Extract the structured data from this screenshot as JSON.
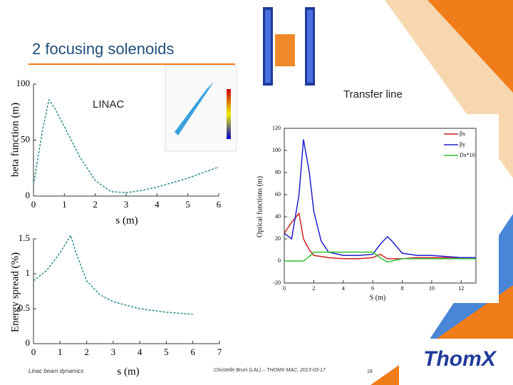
{
  "slide": {
    "title": "2 focusing solenoids",
    "linac_label": "LINAC",
    "transfer_label": "Transfer line",
    "footer_left": "Linac beam dynamics",
    "footer_center": "Christelle Bruni (LAL) – THOMX MAC, 2013-03-17",
    "page": "18",
    "logo": "ThomX"
  },
  "chart_data": [
    {
      "type": "line",
      "xlabel": "s (m)",
      "ylabel": "beta function (m)",
      "xlim": [
        0,
        6
      ],
      "xticks": [
        0,
        1,
        2,
        3,
        4,
        5,
        6
      ],
      "ylim": [
        0,
        100
      ],
      "yticks": [
        0,
        50,
        100
      ],
      "x": [
        0,
        0.3,
        0.5,
        0.7,
        1,
        1.5,
        2,
        2.5,
        3,
        3.5,
        4,
        4.5,
        5,
        5.5,
        6
      ],
      "series": [
        {
          "color": "#2e8b8b",
          "values": [
            10,
            60,
            86,
            78,
            62,
            35,
            14,
            4,
            3,
            5,
            8,
            12,
            16,
            21,
            26
          ]
        }
      ]
    },
    {
      "type": "line",
      "xlabel": "s (m)",
      "ylabel": "Energy spread (%)",
      "xlim": [
        0,
        7
      ],
      "xticks": [
        0,
        1,
        2,
        3,
        4,
        5,
        6,
        7
      ],
      "ylim": [
        0,
        1.5
      ],
      "yticks": [
        0,
        0.5,
        1,
        1.5
      ],
      "x": [
        0,
        0.5,
        1,
        1.4,
        1.6,
        2,
        2.5,
        3,
        4,
        5,
        6
      ],
      "series": [
        {
          "color": "#2e8b8b",
          "values": [
            0.9,
            1.05,
            1.3,
            1.55,
            1.3,
            0.9,
            0.7,
            0.6,
            0.5,
            0.45,
            0.42
          ]
        }
      ]
    },
    {
      "type": "line",
      "xlabel": "S (m)",
      "ylabel": "Optical functions (m)",
      "xlim": [
        0,
        13
      ],
      "xticks": [
        0,
        2,
        4,
        6,
        8,
        10,
        12
      ],
      "ylim": [
        -20,
        120
      ],
      "yticks": [
        -20,
        0,
        20,
        40,
        60,
        80,
        100,
        120
      ],
      "legend": "upper right",
      "x": [
        0,
        0.5,
        1,
        1.3,
        1.7,
        2,
        2.5,
        3,
        4,
        5,
        6,
        6.5,
        7,
        7.3,
        8,
        9,
        10,
        12,
        13
      ],
      "series": [
        {
          "name": "βx",
          "color": "#cc2020",
          "values": [
            25,
            35,
            43,
            20,
            10,
            5,
            4,
            3,
            2,
            2,
            3,
            6,
            2,
            2,
            2,
            3,
            3,
            3,
            3
          ]
        },
        {
          "name": "βy",
          "color": "#2020cc",
          "values": [
            25,
            20,
            60,
            110,
            80,
            45,
            18,
            8,
            5,
            5,
            6,
            15,
            22,
            18,
            7,
            5,
            5,
            3,
            3
          ]
        },
        {
          "name": "Dx*10",
          "color": "#30c030",
          "values": [
            0,
            0,
            0,
            0,
            4,
            8,
            8,
            8,
            8,
            8,
            8,
            3,
            -1,
            0,
            2,
            2,
            2,
            2,
            2
          ]
        }
      ]
    }
  ]
}
